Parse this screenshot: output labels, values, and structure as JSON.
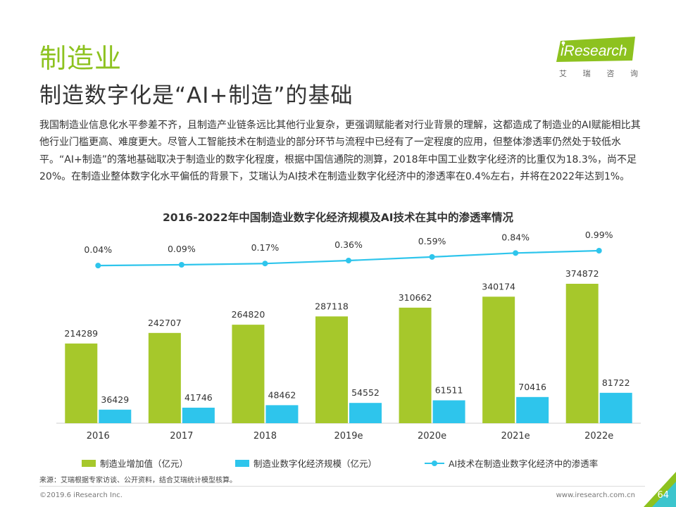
{
  "header": {
    "section_title": "制造业",
    "slide_title": "制造数字化是“AI+制造”的基础"
  },
  "logo": {
    "name": "iResearch",
    "subtitle_chars": [
      "艾",
      "瑞",
      "咨",
      "询"
    ]
  },
  "body": {
    "paragraph": "我国制造业信息化水平参差不齐，且制造产业链条远比其他行业复杂，更强调赋能者对行业背景的理解，这都造成了制造业的AI赋能相比其他行业门槛更高、难度更大。尽管人工智能技术在制造业的部分环节与流程中已经有了一定程度的应用，但整体渗透率仍然处于较低水平。“AI+制造”的落地基础取决于制造业的数字化程度，根据中国信通院的测算，2018年中国工业数字化经济的比重仅为18.3%，尚不足20%。在制造业整体数字化水平偏低的背景下，艾瑞认为AI技术在制造业数字化经济中的渗透率在0.4%左右，并将在2022年达到1%。"
  },
  "chart_data": {
    "type": "bar",
    "title": "2016-2022年中国制造业数字化经济规模及AI技术在其中的渗透率情况",
    "categories": [
      "2016",
      "2017",
      "2018",
      "2019e",
      "2020e",
      "2021e",
      "2022e"
    ],
    "series": [
      {
        "name": "制造业增加值（亿元）",
        "kind": "bar",
        "color": "#a6c82b",
        "values": [
          214289,
          242707,
          264820,
          287118,
          310662,
          340174,
          374872
        ]
      },
      {
        "name": "制造业数字化经济规模（亿元）",
        "kind": "bar",
        "color": "#2ec5ec",
        "values": [
          36429,
          41746,
          48462,
          54552,
          61511,
          70416,
          81722
        ]
      },
      {
        "name": "AI技术在制造业数字化经济中的渗透率",
        "kind": "line",
        "color": "#2ec5ec",
        "values": [
          0.04,
          0.09,
          0.17,
          0.36,
          0.59,
          0.84,
          0.99
        ],
        "labels": [
          "0.04%",
          "0.09%",
          "0.17%",
          "0.36%",
          "0.59%",
          "0.84%",
          "0.99%"
        ]
      }
    ],
    "ylim": [
      0,
      374872
    ],
    "grid": false,
    "legend_position": "bottom"
  },
  "footer": {
    "source": "来源：艾瑞根据专家访谈、公开资料，结合艾瑞统计模型核算。",
    "copyright": "©2019.6 iResearch Inc.",
    "website": "www.iresearch.com.cn",
    "page_number": "64"
  },
  "colors": {
    "brand_green": "#8dc21f",
    "bar_green": "#a6c82b",
    "bar_blue": "#2ec5ec"
  }
}
